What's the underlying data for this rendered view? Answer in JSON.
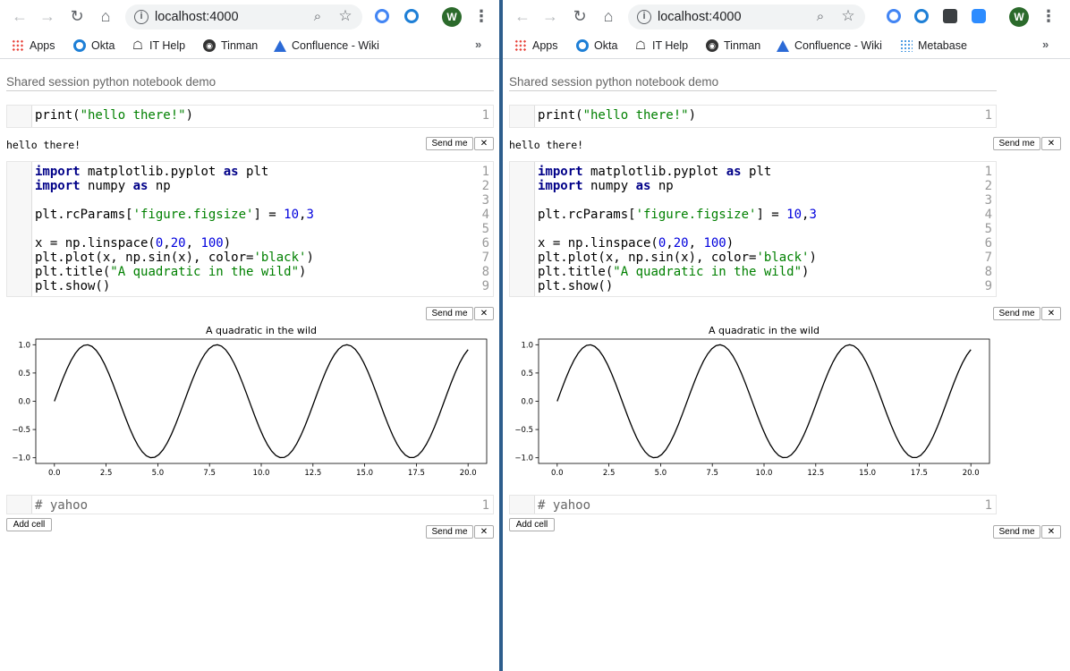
{
  "browser": {
    "url": "localhost:4000",
    "avatar_letter": "W",
    "bookmarks": [
      "Apps",
      "Okta",
      "IT Help",
      "Tinman",
      "Confluence - Wiki",
      "Metabase"
    ]
  },
  "notebook": {
    "title": "Shared session python notebook demo",
    "send_label": "Send me",
    "close_label": "✕",
    "add_cell_label": "Add cell",
    "cell1": {
      "line_numbers": [
        "1"
      ],
      "code": [
        "print(\"hello there!\")"
      ],
      "output": "hello there!"
    },
    "cell2": {
      "line_numbers": [
        "1",
        "2",
        "3",
        "4",
        "5",
        "6",
        "7",
        "8",
        "9"
      ],
      "code": [
        "import matplotlib.pyplot as plt",
        "import numpy as np",
        "",
        "plt.rcParams['figure.figsize'] = 10,3",
        "",
        "x = np.linspace(0,20, 100)",
        "plt.plot(x, np.sin(x), color='black')",
        "plt.title(\"A quadratic in the wild\")",
        "plt.show()"
      ]
    },
    "cell3": {
      "line_numbers": [
        "1"
      ],
      "code": [
        "# yahoo"
      ]
    }
  },
  "chart_data": {
    "type": "line",
    "title": "A quadratic in the wild",
    "xlabel": "",
    "ylabel": "",
    "xlim": [
      -0.9,
      20.9
    ],
    "ylim": [
      -1.1,
      1.1
    ],
    "x_ticks": [
      "0.0",
      "2.5",
      "5.0",
      "7.5",
      "10.0",
      "12.5",
      "15.0",
      "17.5",
      "20.0"
    ],
    "y_ticks": [
      "1.0",
      "0.5",
      "0.0",
      "−0.5",
      "−1.0"
    ],
    "series": [
      {
        "function": "y = sin(x)",
        "x_range": [
          0,
          20
        ],
        "points": 100,
        "color": "#000000"
      }
    ],
    "grid": false
  },
  "colors": {
    "divider": "#2d5d8c",
    "keyword": "#000088",
    "string": "#008000",
    "number": "#0000dd"
  }
}
